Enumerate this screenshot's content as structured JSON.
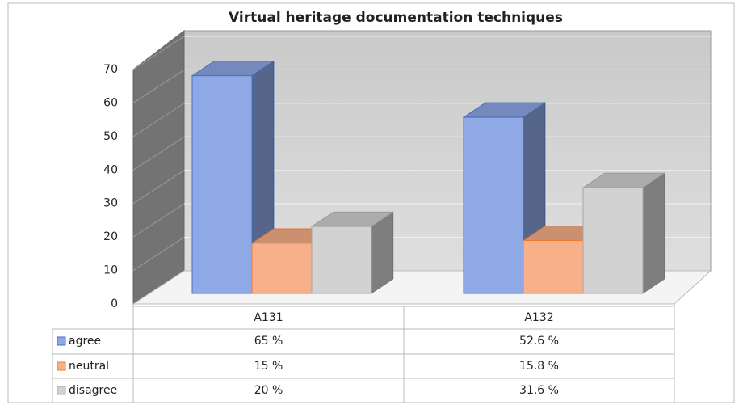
{
  "chart_data": {
    "type": "bar",
    "title": "Virtual heritage documentation techniques",
    "categories": [
      "A131",
      "A132"
    ],
    "series": [
      {
        "name": "agree",
        "color": "#8fa8e6",
        "values": [
          65,
          52.6
        ],
        "value_labels": [
          "65 %",
          "52.6 %"
        ]
      },
      {
        "name": "neutral",
        "color": "#f7b089",
        "values": [
          15,
          15.8
        ],
        "value_labels": [
          "15 %",
          "15.8 %"
        ]
      },
      {
        "name": "disagree",
        "color": "#d2d2d2",
        "values": [
          20,
          31.6
        ],
        "value_labels": [
          "20 %",
          "31.6 %"
        ]
      }
    ],
    "ylim": [
      0,
      70
    ],
    "yticks": [
      0,
      10,
      20,
      30,
      40,
      50,
      60,
      70
    ],
    "grid": true
  }
}
